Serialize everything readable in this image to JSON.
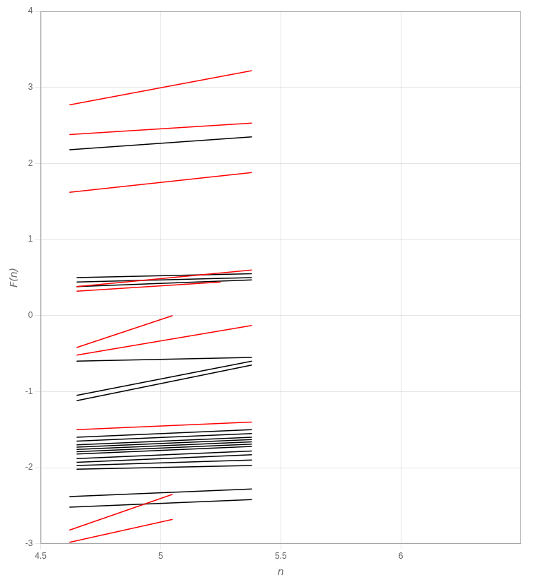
{
  "chart_data": {
    "type": "line",
    "xlabel": "n",
    "ylabel": "F(n)",
    "xlim": [
      4.5,
      6.5
    ],
    "ylim": [
      -3,
      4
    ],
    "xticks": [
      4.5,
      5.0,
      5.5,
      6.0
    ],
    "yticks": [
      -3,
      -2,
      -1,
      0,
      1,
      2,
      3,
      4
    ],
    "grid": true,
    "series": [
      {
        "color": "red",
        "x": [
          4.62,
          5.38
        ],
        "values": [
          2.77,
          3.22
        ]
      },
      {
        "color": "red",
        "x": [
          4.62,
          5.38
        ],
        "values": [
          2.38,
          2.53
        ]
      },
      {
        "color": "red",
        "x": [
          4.62,
          5.38
        ],
        "values": [
          1.62,
          1.88
        ]
      },
      {
        "color": "red",
        "x": [
          4.65,
          5.38
        ],
        "values": [
          0.38,
          0.6
        ]
      },
      {
        "color": "red",
        "x": [
          4.65,
          5.25
        ],
        "values": [
          0.32,
          0.44
        ]
      },
      {
        "color": "red",
        "x": [
          4.65,
          5.05
        ],
        "values": [
          -0.42,
          0.0
        ]
      },
      {
        "color": "red",
        "x": [
          4.65,
          5.38
        ],
        "values": [
          -0.52,
          -0.13
        ]
      },
      {
        "color": "red",
        "x": [
          4.65,
          5.38
        ],
        "values": [
          -1.5,
          -1.4
        ]
      },
      {
        "color": "red",
        "x": [
          4.62,
          5.05
        ],
        "values": [
          -2.98,
          -2.68
        ]
      },
      {
        "color": "red",
        "x": [
          4.62,
          5.05
        ],
        "values": [
          -2.82,
          -2.35
        ]
      },
      {
        "color": "black",
        "x": [
          4.62,
          5.38
        ],
        "values": [
          2.18,
          2.35
        ]
      },
      {
        "color": "black",
        "x": [
          4.65,
          5.38
        ],
        "values": [
          0.5,
          0.55
        ]
      },
      {
        "color": "black",
        "x": [
          4.65,
          5.38
        ],
        "values": [
          0.44,
          0.5
        ]
      },
      {
        "color": "black",
        "x": [
          4.65,
          5.38
        ],
        "values": [
          0.38,
          0.47
        ]
      },
      {
        "color": "black",
        "x": [
          4.65,
          5.38
        ],
        "values": [
          -0.6,
          -0.55
        ]
      },
      {
        "color": "black",
        "x": [
          4.65,
          5.38
        ],
        "values": [
          -1.05,
          -0.6
        ]
      },
      {
        "color": "black",
        "x": [
          4.65,
          5.38
        ],
        "values": [
          -1.12,
          -0.65
        ]
      },
      {
        "color": "black",
        "x": [
          4.65,
          5.38
        ],
        "values": [
          -1.6,
          -1.5
        ]
      },
      {
        "color": "black",
        "x": [
          4.65,
          5.38
        ],
        "values": [
          -1.65,
          -1.55
        ]
      },
      {
        "color": "black",
        "x": [
          4.65,
          5.38
        ],
        "values": [
          -1.7,
          -1.6
        ]
      },
      {
        "color": "black",
        "x": [
          4.65,
          5.38
        ],
        "values": [
          -1.73,
          -1.63
        ]
      },
      {
        "color": "black",
        "x": [
          4.65,
          5.38
        ],
        "values": [
          -1.76,
          -1.66
        ]
      },
      {
        "color": "black",
        "x": [
          4.65,
          5.38
        ],
        "values": [
          -1.79,
          -1.69
        ]
      },
      {
        "color": "black",
        "x": [
          4.65,
          5.38
        ],
        "values": [
          -1.82,
          -1.72
        ]
      },
      {
        "color": "black",
        "x": [
          4.65,
          5.38
        ],
        "values": [
          -1.88,
          -1.78
        ]
      },
      {
        "color": "black",
        "x": [
          4.65,
          5.38
        ],
        "values": [
          -1.93,
          -1.83
        ]
      },
      {
        "color": "black",
        "x": [
          4.65,
          5.38
        ],
        "values": [
          -1.97,
          -1.9
        ]
      },
      {
        "color": "black",
        "x": [
          4.65,
          5.38
        ],
        "values": [
          -2.02,
          -1.97
        ]
      },
      {
        "color": "black",
        "x": [
          4.62,
          5.38
        ],
        "values": [
          -2.38,
          -2.28
        ]
      },
      {
        "color": "black",
        "x": [
          4.62,
          5.38
        ],
        "values": [
          -2.52,
          -2.42
        ]
      }
    ]
  }
}
